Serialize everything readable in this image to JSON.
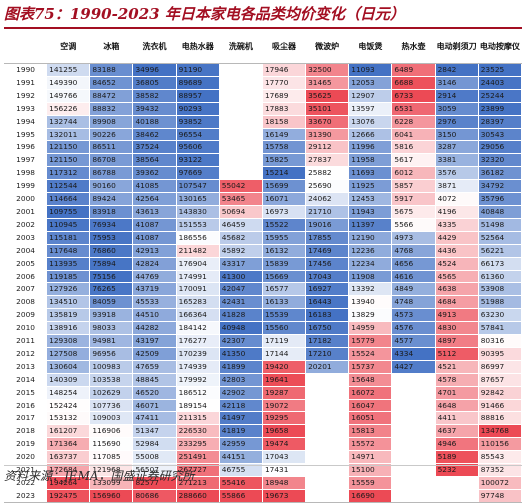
{
  "title": "图表75：1990-2023 年日本家电各品类均价变化（日元）",
  "source": "资料来源：JEMA，国盛证券研究所",
  "colors": {
    "title": "#a30f22",
    "scale_low": "#4472c4",
    "scale_mid": "#ffffff",
    "scale_high": "#ec4a55"
  },
  "table": {
    "columns": [
      "",
      "空调",
      "冰箱",
      "洗衣机",
      "电热水器",
      "洗碗机",
      "吸尘器",
      "微波炉",
      "电饭煲",
      "热水壶",
      "电动剃须刀",
      "电动按摩仪"
    ],
    "rows": [
      {
        "year": "1990",
        "values": [
          "141255",
          "83188",
          "34996",
          "91190",
          "",
          "17946",
          "32500",
          "11093",
          "6489",
          "2842",
          "23525"
        ]
      },
      {
        "year": "1991",
        "values": [
          "149390",
          "84652",
          "36805",
          "89689",
          "",
          "17770",
          "31465",
          "12053",
          "6688",
          "3146",
          "24403"
        ]
      },
      {
        "year": "1992",
        "values": [
          "149766",
          "88472",
          "38582",
          "88957",
          "",
          "17689",
          "35625",
          "12907",
          "6733",
          "2914",
          "25244"
        ]
      },
      {
        "year": "1993",
        "values": [
          "156226",
          "88832",
          "39432",
          "90293",
          "",
          "17883",
          "35101",
          "13597",
          "6531",
          "3059",
          "23899"
        ]
      },
      {
        "year": "1994",
        "values": [
          "132744",
          "89908",
          "40188",
          "93852",
          "",
          "18158",
          "33670",
          "13076",
          "6228",
          "2976",
          "28397"
        ]
      },
      {
        "year": "1995",
        "values": [
          "132011",
          "90226",
          "38462",
          "96554",
          "",
          "16149",
          "31390",
          "12666",
          "6041",
          "3150",
          "30543"
        ]
      },
      {
        "year": "1996",
        "values": [
          "121150",
          "86511",
          "37524",
          "95606",
          "",
          "15758",
          "29112",
          "11996",
          "5816",
          "3287",
          "29056"
        ]
      },
      {
        "year": "1997",
        "values": [
          "121150",
          "86708",
          "38564",
          "93122",
          "",
          "15825",
          "27837",
          "11958",
          "5617",
          "3381",
          "32320"
        ]
      },
      {
        "year": "1998",
        "values": [
          "117312",
          "86788",
          "39362",
          "97669",
          "",
          "15214",
          "25882",
          "11693",
          "6012",
          "3576",
          "36182"
        ]
      },
      {
        "year": "1999",
        "values": [
          "112544",
          "90160",
          "41085",
          "107547",
          "55042",
          "15699",
          "25690",
          "11925",
          "5857",
          "3871",
          "34792"
        ]
      },
      {
        "year": "2000",
        "values": [
          "114664",
          "89424",
          "42564",
          "130165",
          "53465",
          "16071",
          "24062",
          "12453",
          "5917",
          "4072",
          "35796"
        ]
      },
      {
        "year": "2001",
        "values": [
          "109755",
          "83918",
          "43613",
          "143830",
          "50694",
          "16973",
          "21710",
          "11943",
          "5675",
          "4196",
          "40848"
        ]
      },
      {
        "year": "2002",
        "values": [
          "110945",
          "76934",
          "41087",
          "151553",
          "46459",
          "15522",
          "19016",
          "11397",
          "5566",
          "4335",
          "51498"
        ]
      },
      {
        "year": "2003",
        "values": [
          "115181",
          "75953",
          "41087",
          "186556",
          "45682",
          "15955",
          "17855",
          "12190",
          "4973",
          "4429",
          "52564"
        ]
      },
      {
        "year": "2004",
        "values": [
          "117648",
          "76860",
          "42913",
          "211482",
          "45892",
          "16132",
          "17469",
          "12236",
          "4768",
          "4436",
          "56221"
        ]
      },
      {
        "year": "2005",
        "values": [
          "113935",
          "75894",
          "42824",
          "176904",
          "43317",
          "15839",
          "17456",
          "12234",
          "4656",
          "4524",
          "66173"
        ]
      },
      {
        "year": "2006",
        "values": [
          "119185",
          "75156",
          "44769",
          "174991",
          "41300",
          "15669",
          "17043",
          "11908",
          "4616",
          "4565",
          "61360"
        ]
      },
      {
        "year": "2007",
        "values": [
          "127926",
          "76265",
          "43719",
          "170091",
          "42047",
          "16577",
          "16927",
          "13392",
          "4849",
          "4638",
          "53908"
        ]
      },
      {
        "year": "2008",
        "values": [
          "134510",
          "84059",
          "45533",
          "165283",
          "42431",
          "16133",
          "16443",
          "13940",
          "4748",
          "4684",
          "51988"
        ]
      },
      {
        "year": "2009",
        "values": [
          "135819",
          "93918",
          "44510",
          "166364",
          "41828",
          "15539",
          "16183",
          "13829",
          "4573",
          "4913",
          "63230"
        ]
      },
      {
        "year": "2010",
        "values": [
          "138916",
          "98033",
          "44282",
          "184142",
          "40948",
          "15560",
          "16750",
          "14959",
          "4576",
          "4830",
          "57841"
        ]
      },
      {
        "year": "2011",
        "values": [
          "129308",
          "94981",
          "43197",
          "176277",
          "42307",
          "17119",
          "17182",
          "15779",
          "4577",
          "4897",
          "80316"
        ]
      },
      {
        "year": "2012",
        "values": [
          "127508",
          "96956",
          "42509",
          "170239",
          "41350",
          "17144",
          "17210",
          "15524",
          "4334",
          "5112",
          "90395"
        ]
      },
      {
        "year": "2013",
        "values": [
          "130604",
          "100983",
          "47659",
          "174939",
          "41899",
          "19420",
          "20201",
          "15737",
          "4427",
          "4521",
          "86997"
        ]
      },
      {
        "year": "2014",
        "values": [
          "140309",
          "103538",
          "48845",
          "179992",
          "42803",
          "19641",
          "",
          "15648",
          "",
          "4578",
          "87657"
        ]
      },
      {
        "year": "2015",
        "values": [
          "148254",
          "102629",
          "46520",
          "186512",
          "42902",
          "19287",
          "",
          "16072",
          "",
          "4701",
          "92842"
        ]
      },
      {
        "year": "2016",
        "values": [
          "152424",
          "107736",
          "46071",
          "189154",
          "42118",
          "19072",
          "",
          "16047",
          "",
          "4648",
          "91466"
        ]
      },
      {
        "year": "2017",
        "values": [
          "153132",
          "109003",
          "47411",
          "211315",
          "41497",
          "19295",
          "",
          "16051",
          "",
          "4411",
          "88816"
        ]
      },
      {
        "year": "2018",
        "values": [
          "161207",
          "116906",
          "51347",
          "226530",
          "41819",
          "19658",
          "",
          "15813",
          "",
          "4637",
          "134768"
        ]
      },
      {
        "year": "2019",
        "values": [
          "171364",
          "115690",
          "52984",
          "233295",
          "42959",
          "19474",
          "",
          "15572",
          "",
          "4946",
          "110156"
        ]
      },
      {
        "year": "2020",
        "values": [
          "163737",
          "117085",
          "55008",
          "251491",
          "44151",
          "17043",
          "",
          "14971",
          "",
          "5189",
          "85543"
        ]
      },
      {
        "year": "2021",
        "values": [
          "172684",
          "121968",
          "56507",
          "267727",
          "46755",
          "17431",
          "",
          "15100",
          "",
          "5232",
          "87352"
        ]
      },
      {
        "year": "2022",
        "values": [
          "194264",
          "133099",
          "82577",
          "271213",
          "55416",
          "18948",
          "",
          "15559",
          "",
          "",
          "100072"
        ]
      },
      {
        "year": "2023",
        "values": [
          "192475",
          "156960",
          "80686",
          "288660",
          "55866",
          "19673",
          "",
          "16690",
          "",
          "",
          "97748"
        ]
      }
    ]
  }
}
